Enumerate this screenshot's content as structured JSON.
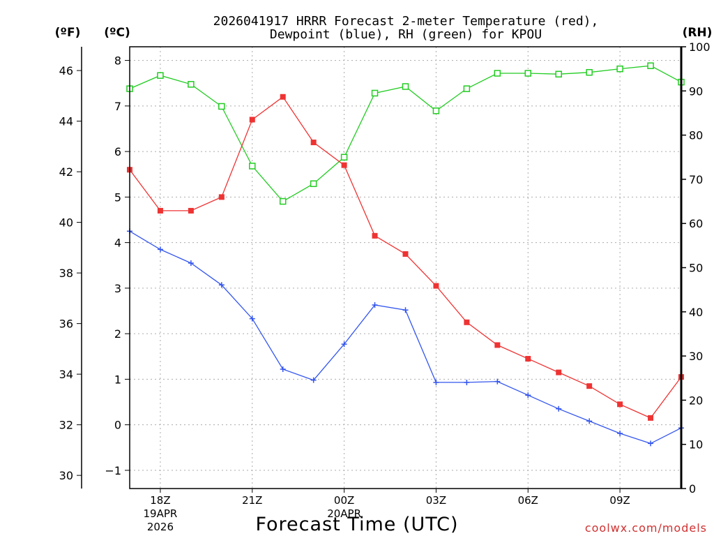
{
  "chart_data": {
    "type": "line",
    "title_line1": "2026041917 HRRR Forecast 2-meter Temperature (red),",
    "title_line2": "Dewpoint (blue), RH (green) for KPOU",
    "unit_f": "(ºF)",
    "unit_c": "(ºC)",
    "unit_rh": "(RH)",
    "xlabel": "Forecast Time (UTC)",
    "credit": "coolwx.com/models",
    "x_hours": [
      17,
      18,
      19,
      20,
      21,
      22,
      23,
      24,
      25,
      26,
      27,
      28,
      29,
      30,
      31,
      32,
      33,
      34,
      35
    ],
    "x_range": [
      17,
      35
    ],
    "c_range": [
      -1.4,
      8.3
    ],
    "f_range": [
      29.48,
      46.94
    ],
    "rh_range": [
      0,
      100
    ],
    "x_ticks": [
      {
        "hour": 18,
        "label": "18Z",
        "date": "19APR",
        "year": "2026"
      },
      {
        "hour": 21,
        "label": "21Z"
      },
      {
        "hour": 24,
        "label": "00Z",
        "date": "20APR"
      },
      {
        "hour": 27,
        "label": "03Z"
      },
      {
        "hour": 30,
        "label": "06Z"
      },
      {
        "hour": 33,
        "label": "09Z"
      }
    ],
    "c_ticks": [
      -1,
      0,
      1,
      2,
      3,
      4,
      5,
      6,
      7,
      8
    ],
    "c_tick_labels": [
      "−1",
      "0",
      "1",
      "2",
      "3",
      "4",
      "5",
      "6",
      "7",
      "8"
    ],
    "f_ticks": [
      30,
      32,
      34,
      36,
      38,
      40,
      42,
      44,
      46
    ],
    "rh_ticks": [
      0,
      10,
      20,
      30,
      40,
      50,
      60,
      70,
      80,
      90,
      100
    ],
    "series": [
      {
        "name": "2-meter Temperature",
        "unit": "C",
        "color": "#ee3333",
        "marker": "filled-square",
        "values": [
          5.6,
          4.7,
          4.7,
          5.0,
          6.7,
          7.2,
          6.2,
          5.7,
          4.15,
          3.75,
          3.05,
          2.25,
          1.75,
          1.45,
          1.15,
          0.85,
          0.45,
          0.15,
          1.05
        ]
      },
      {
        "name": "Dewpoint",
        "unit": "C",
        "color": "#3355ee",
        "marker": "plus",
        "values": [
          4.25,
          3.85,
          3.55,
          3.07,
          2.33,
          1.22,
          0.98,
          1.77,
          2.63,
          2.52,
          0.93,
          0.93,
          0.95,
          0.65,
          0.35,
          0.08,
          -0.19,
          -0.41,
          -0.07
        ]
      },
      {
        "name": "RH",
        "unit": "%",
        "color": "#22cc22",
        "marker": "open-square",
        "values": [
          90.5,
          93.5,
          91.5,
          86.5,
          73.0,
          65.0,
          69.0,
          75.0,
          89.5,
          91.0,
          85.5,
          90.5,
          94.0,
          94.0,
          93.8,
          94.2,
          95.0,
          95.7,
          92.0
        ]
      }
    ]
  }
}
